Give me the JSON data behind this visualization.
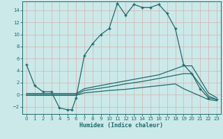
{
  "xlabel": "Humidex (Indice chaleur)",
  "bg_color": "#cce9e9",
  "grid_color": "#d4b8b8",
  "line_color": "#1a6b6b",
  "xlim": [
    -0.5,
    23.5
  ],
  "ylim": [
    -3.2,
    15.5
  ],
  "xticks": [
    0,
    1,
    2,
    3,
    4,
    5,
    6,
    7,
    8,
    9,
    10,
    11,
    12,
    13,
    14,
    15,
    16,
    17,
    18,
    19,
    20,
    21,
    22,
    23
  ],
  "yticks": [
    -2,
    0,
    2,
    4,
    6,
    8,
    10,
    12,
    14
  ],
  "line1_x": [
    0,
    1,
    2,
    3,
    4,
    5,
    5.5,
    6,
    7,
    8,
    9,
    10,
    11,
    12,
    13,
    14,
    15,
    16,
    17,
    18,
    19,
    20,
    21,
    22,
    23
  ],
  "line1_y": [
    5.0,
    1.5,
    0.5,
    0.5,
    -2.2,
    -2.5,
    -2.5,
    -0.5,
    6.5,
    8.5,
    10.0,
    11.0,
    15.2,
    13.2,
    15.0,
    14.5,
    14.5,
    15.0,
    13.5,
    11.0,
    5.0,
    3.5,
    1.0,
    -0.5,
    -0.8
  ],
  "line2_x": [
    0,
    6,
    7,
    10,
    12,
    14,
    16,
    19,
    20,
    22,
    23
  ],
  "line2_y": [
    0.2,
    0.2,
    1.0,
    1.8,
    2.3,
    2.8,
    3.3,
    4.8,
    4.8,
    0.3,
    -0.5
  ],
  "line3_x": [
    0,
    6,
    7,
    10,
    12,
    14,
    16,
    19,
    20,
    22,
    23
  ],
  "line3_y": [
    0.0,
    0.0,
    0.7,
    1.3,
    1.8,
    2.2,
    2.7,
    3.5,
    3.5,
    -0.2,
    -0.8
  ],
  "line4_x": [
    0,
    6,
    7,
    10,
    12,
    14,
    16,
    18,
    19,
    22,
    23
  ],
  "line4_y": [
    -0.1,
    -0.1,
    0.3,
    0.7,
    0.9,
    1.2,
    1.5,
    1.8,
    1.0,
    -0.8,
    -1.0
  ]
}
